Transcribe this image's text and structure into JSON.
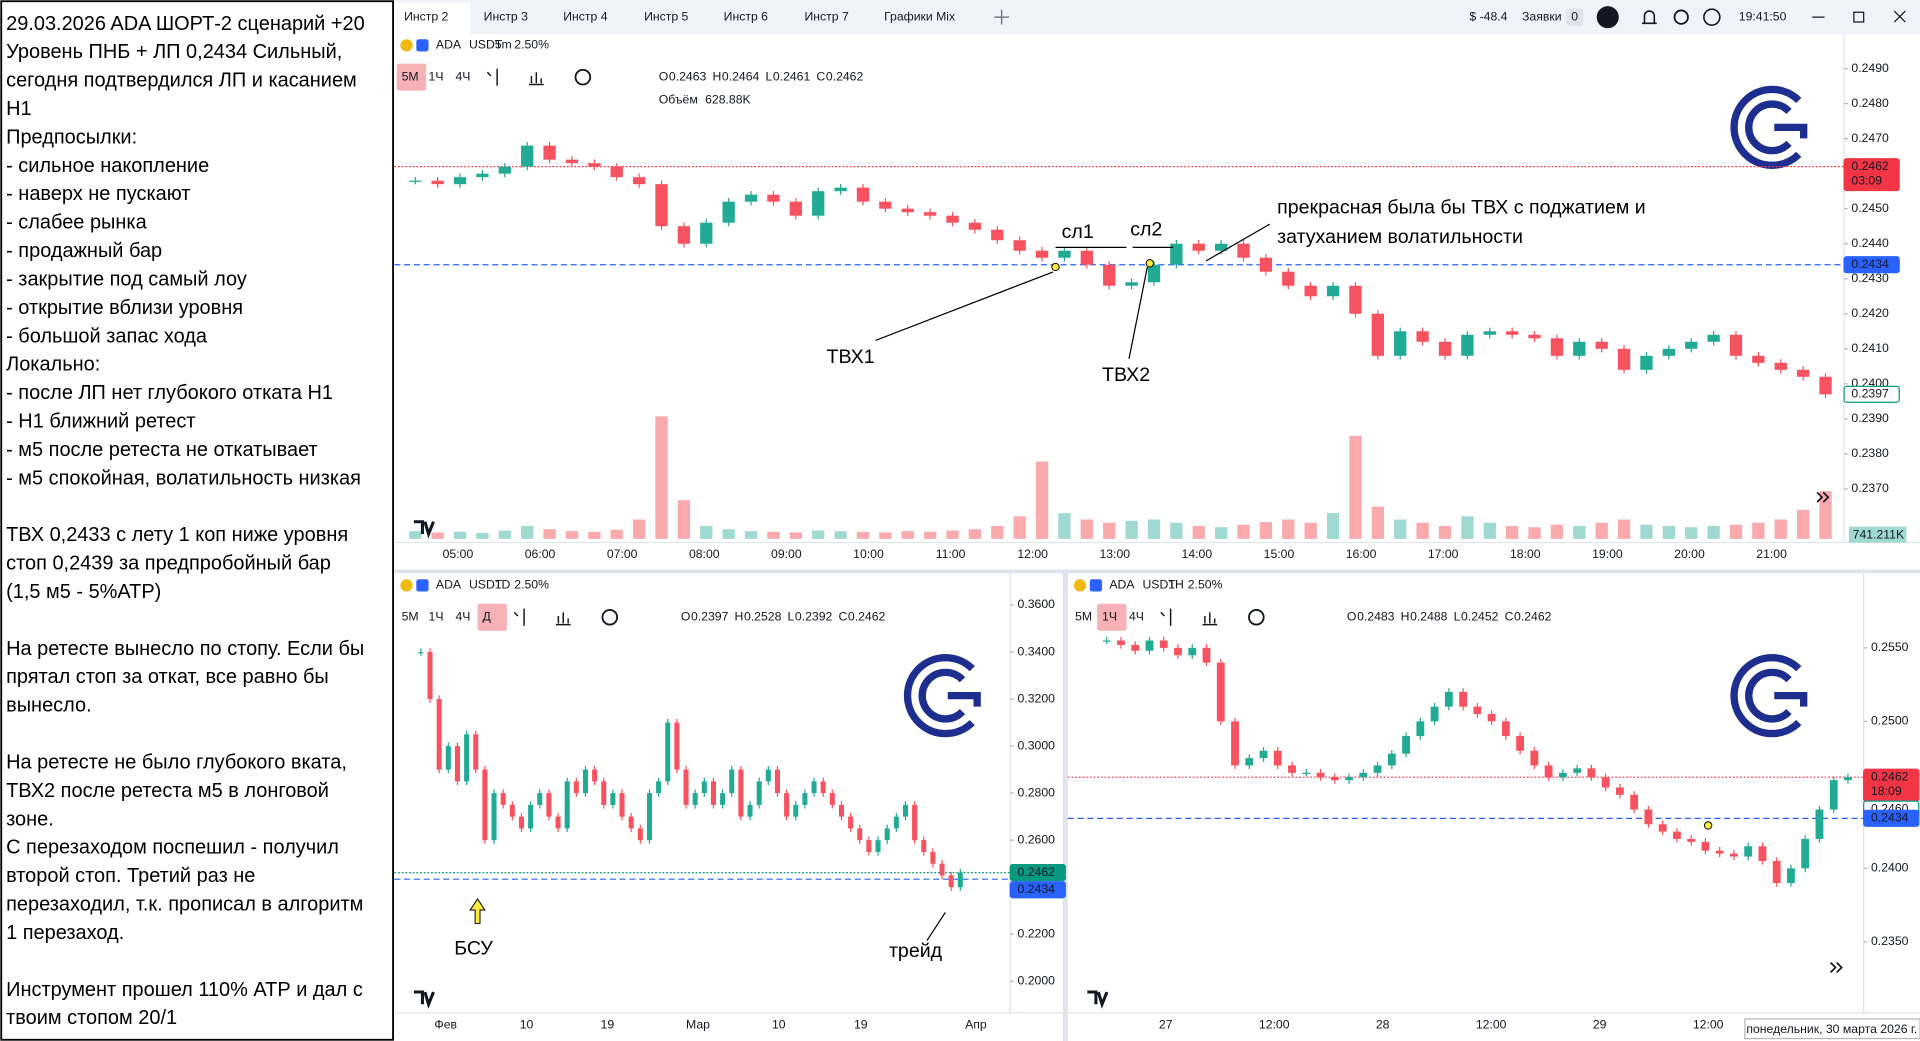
{
  "notes": [
    [
      "29.03.2026 ADA ШОРТ-2 сценарий +20",
      "Уровень ПНБ + ЛП 0,2434 Сильный,",
      "сегодня подтвердился ЛП и касанием",
      "Н1",
      "Предпосылки:",
      "- сильное накопление",
      "- наверх не пускают",
      "- слабее рынка",
      "- продажный бар",
      "- закрытие под самый лоу",
      "- открытие вблизи уровня",
      "- большой запас хода",
      "Локально:",
      "- после ЛП нет глубокого отката Н1",
      "- Н1 ближний ретест",
      "- м5 после ретеста не откатывает",
      "- м5 спокойная, волатильность низкая"
    ],
    [
      "ТВХ 0,2433 с лету 1 коп ниже уровня",
      "стоп 0,2439 за предпробойный бар",
      "(1,5 м5 - 5%АТР)"
    ],
    [
      "На ретесте вынесло по стопу. Если бы",
      "прятал стоп за откат, все равно бы",
      "вынесло."
    ],
    [
      "На ретесте не было глубокого вката,",
      "ТВХ2 после ретеста м5 в лонговой",
      "зоне.",
      "С перезаходом поспешил - получил",
      "второй стоп. Третий раз не",
      "перезаходил, т.к. прописал в алгоритм",
      "1 перезаход."
    ],
    [
      "Инструмент прошел 110% АТР и дал с",
      "твоим стопом 20/1"
    ]
  ],
  "tabs": [
    "Инстр 2",
    "Инстр 3",
    "Инстр 4",
    "Инстр 5",
    "Инстр 6",
    "Инстр 7",
    "Графики  Mix"
  ],
  "header": {
    "pnl": "$ -48.4",
    "orders": "Заявки",
    "orders_count": "0",
    "clock": "19:41:50"
  },
  "date_label": "понедельник, 30 марта 2026 г.",
  "panels": [
    {
      "symbol": "ADA",
      "quote": "USDT",
      "timeframe": "5m",
      "change": "2.50%",
      "intervals": [
        "5М",
        "1Ч",
        "4Ч"
      ],
      "active_interval": 0,
      "ohlc": [
        [
          "O",
          "0.2463"
        ],
        [
          "H",
          "0.2464"
        ],
        [
          "L",
          "0.2461"
        ],
        [
          "C",
          "0.2462"
        ]
      ],
      "volume_label": "Объём",
      "volume_value": "628.88K",
      "volume_tag": "741.211K",
      "price_ticks": [
        {
          "value": 0.249,
          "label": "0.2490"
        },
        {
          "value": 0.248,
          "label": "0.2480"
        },
        {
          "value": 0.247,
          "label": "0.2470"
        },
        {
          "value": 0.246,
          "label": "0.2460"
        },
        {
          "value": 0.245,
          "label": "0.2450"
        },
        {
          "value": 0.244,
          "label": "0.2440"
        },
        {
          "value": 0.243,
          "label": "0.2430"
        },
        {
          "value": 0.242,
          "label": "0.2420"
        },
        {
          "value": 0.241,
          "label": "0.2410"
        },
        {
          "value": 0.24,
          "label": "0.2400"
        },
        {
          "value": 0.239,
          "label": "0.2390"
        },
        {
          "value": 0.238,
          "label": "0.2380"
        },
        {
          "value": 0.237,
          "label": "0.2370"
        }
      ],
      "time_ticks": [
        "05:00",
        "06:00",
        "07:00",
        "08:00",
        "09:00",
        "10:00",
        "11:00",
        "12:00",
        "13:00",
        "14:00",
        "15:00",
        "16:00",
        "17:00",
        "18:00",
        "19:00",
        "20:00",
        "21:00"
      ],
      "levels": [
        {
          "value": 0.2462,
          "color": "#f23645",
          "style": "dotted"
        },
        {
          "value": 0.2434,
          "color": "#2962ff",
          "style": "dashed"
        }
      ],
      "tags": [
        {
          "value": 0.2462,
          "label": "0.2462",
          "sub": "03:09",
          "color": "#f23645",
          "fill": true
        },
        {
          "value": 0.2434,
          "label": "0.2434",
          "color": "#2962ff",
          "fill": true
        },
        {
          "value": 0.2397,
          "label": "0.2397",
          "color": "#089981",
          "fill": false
        }
      ],
      "closes": [
        0.2458,
        0.2457,
        0.2459,
        0.246,
        0.2462,
        0.2468,
        0.2464,
        0.2463,
        0.2462,
        0.2459,
        0.2457,
        0.2445,
        0.244,
        0.2446,
        0.2452,
        0.2454,
        0.2452,
        0.2448,
        0.2455,
        0.2456,
        0.2452,
        0.245,
        0.2449,
        0.2448,
        0.2446,
        0.2444,
        0.2441,
        0.2438,
        0.2436,
        0.2438,
        0.2434,
        0.2428,
        0.2429,
        0.2434,
        0.244,
        0.2438,
        0.244,
        0.2436,
        0.2432,
        0.2428,
        0.2425,
        0.2428,
        0.242,
        0.2408,
        0.2415,
        0.2412,
        0.2408,
        0.2414,
        0.2415,
        0.2414,
        0.2413,
        0.2408,
        0.2412,
        0.241,
        0.2404,
        0.2408,
        0.241,
        0.2412,
        0.2414,
        0.2408,
        0.2406,
        0.2404,
        0.2402,
        0.2397
      ],
      "volumes": [
        120,
        100,
        110,
        90,
        130,
        200,
        150,
        120,
        110,
        140,
        300,
        1900,
        600,
        200,
        150,
        120,
        110,
        100,
        130,
        120,
        110,
        100,
        120,
        110,
        130,
        150,
        200,
        350,
        1200,
        400,
        300,
        250,
        280,
        300,
        250,
        200,
        180,
        220,
        260,
        300,
        250,
        400,
        1600,
        500,
        300,
        250,
        200,
        350,
        250,
        200,
        180,
        220,
        200,
        250,
        300,
        220,
        200,
        180,
        200,
        220,
        250,
        300,
        450,
        741
      ],
      "annotations": [
        "сл1",
        "сл2",
        "ТВХ1",
        "ТВХ2",
        "прекрасная была бы ТВХ с поджатием и",
        "затуханием волатильности"
      ]
    },
    {
      "symbol": "ADA",
      "quote": "USDT",
      "timeframe": "1D",
      "change": "2.50%",
      "intervals": [
        "5М",
        "1Ч",
        "4Ч",
        "Д"
      ],
      "active_interval": 3,
      "ohlc": [
        [
          "O",
          "0.2397"
        ],
        [
          "H",
          "0.2528"
        ],
        [
          "L",
          "0.2392"
        ],
        [
          "C",
          "0.2462"
        ]
      ],
      "price_ticks": [
        {
          "value": 0.36,
          "label": "0.3600"
        },
        {
          "value": 0.34,
          "label": "0.3400"
        },
        {
          "value": 0.32,
          "label": "0.3200"
        },
        {
          "value": 0.3,
          "label": "0.3000"
        },
        {
          "value": 0.28,
          "label": "0.2800"
        },
        {
          "value": 0.26,
          "label": "0.2600"
        },
        {
          "value": 0.22,
          "label": "0.2200"
        },
        {
          "value": 0.2,
          "label": "0.2000"
        }
      ],
      "time_ticks": [
        "Фев",
        "10",
        "19",
        "Мар",
        "10",
        "19",
        "Апр"
      ],
      "levels": [
        {
          "value": 0.2462,
          "color": "#089981",
          "style": "dotted"
        },
        {
          "value": 0.2434,
          "color": "#2962ff",
          "style": "dashed"
        }
      ],
      "tags": [
        {
          "value": 0.2462,
          "label": "0.2462",
          "color": "#089981",
          "fill": true
        },
        {
          "value": 0.2434,
          "label": "0.2434",
          "color": "#2962ff",
          "fill": true,
          "below": true
        }
      ],
      "closes": [
        0.34,
        0.32,
        0.29,
        0.3,
        0.285,
        0.305,
        0.29,
        0.26,
        0.28,
        0.275,
        0.27,
        0.265,
        0.275,
        0.28,
        0.27,
        0.265,
        0.285,
        0.28,
        0.29,
        0.285,
        0.275,
        0.28,
        0.27,
        0.265,
        0.26,
        0.28,
        0.285,
        0.31,
        0.29,
        0.275,
        0.28,
        0.285,
        0.275,
        0.28,
        0.29,
        0.27,
        0.275,
        0.285,
        0.29,
        0.28,
        0.27,
        0.275,
        0.28,
        0.285,
        0.28,
        0.275,
        0.27,
        0.265,
        0.26,
        0.255,
        0.26,
        0.265,
        0.27,
        0.275,
        0.26,
        0.255,
        0.25,
        0.245,
        0.24,
        0.2462
      ],
      "annotations": [
        "БСУ",
        "трейд"
      ]
    },
    {
      "symbol": "ADA",
      "quote": "USDT",
      "timeframe": "1H",
      "change": "2.50%",
      "intervals": [
        "5М",
        "1Ч",
        "4Ч"
      ],
      "active_interval": 1,
      "ohlc": [
        [
          "O",
          "0.2483"
        ],
        [
          "H",
          "0.2488"
        ],
        [
          "L",
          "0.2452"
        ],
        [
          "C",
          "0.2462"
        ]
      ],
      "price_ticks": [
        {
          "value": 0.255,
          "label": "0.2550"
        },
        {
          "value": 0.25,
          "label": "0.2500"
        },
        {
          "value": 0.24,
          "label": "0.2400"
        },
        {
          "value": 0.235,
          "label": "0.2350"
        }
      ],
      "time_ticks": [
        "27",
        "12:00",
        "28",
        "12:00",
        "29",
        "12:00"
      ],
      "levels": [
        {
          "value": 0.2462,
          "color": "#f23645",
          "style": "dotted"
        },
        {
          "value": 0.2434,
          "color": "#2962ff",
          "style": "dashed"
        }
      ],
      "tags": [
        {
          "value": 0.2462,
          "label": "0.2462",
          "sub": "18:09",
          "color": "#f23645",
          "fill": true
        },
        {
          "value": 0.246,
          "label": "0.2460",
          "color": "#089981",
          "fill": false,
          "below": true
        },
        {
          "value": 0.2434,
          "label": "0.2434",
          "color": "#2962ff",
          "fill": true
        }
      ],
      "closes": [
        0.2555,
        0.2552,
        0.2548,
        0.2555,
        0.255,
        0.2545,
        0.255,
        0.254,
        0.25,
        0.247,
        0.2475,
        0.248,
        0.247,
        0.2465,
        0.2465,
        0.2462,
        0.246,
        0.2462,
        0.2465,
        0.247,
        0.2478,
        0.249,
        0.25,
        0.251,
        0.252,
        0.251,
        0.2505,
        0.25,
        0.249,
        0.248,
        0.247,
        0.2462,
        0.2465,
        0.2468,
        0.2462,
        0.2455,
        0.245,
        0.244,
        0.243,
        0.2425,
        0.242,
        0.2418,
        0.2412,
        0.241,
        0.2408,
        0.2415,
        0.2405,
        0.239,
        0.24,
        0.242,
        0.244,
        0.246,
        0.2462
      ]
    }
  ]
}
